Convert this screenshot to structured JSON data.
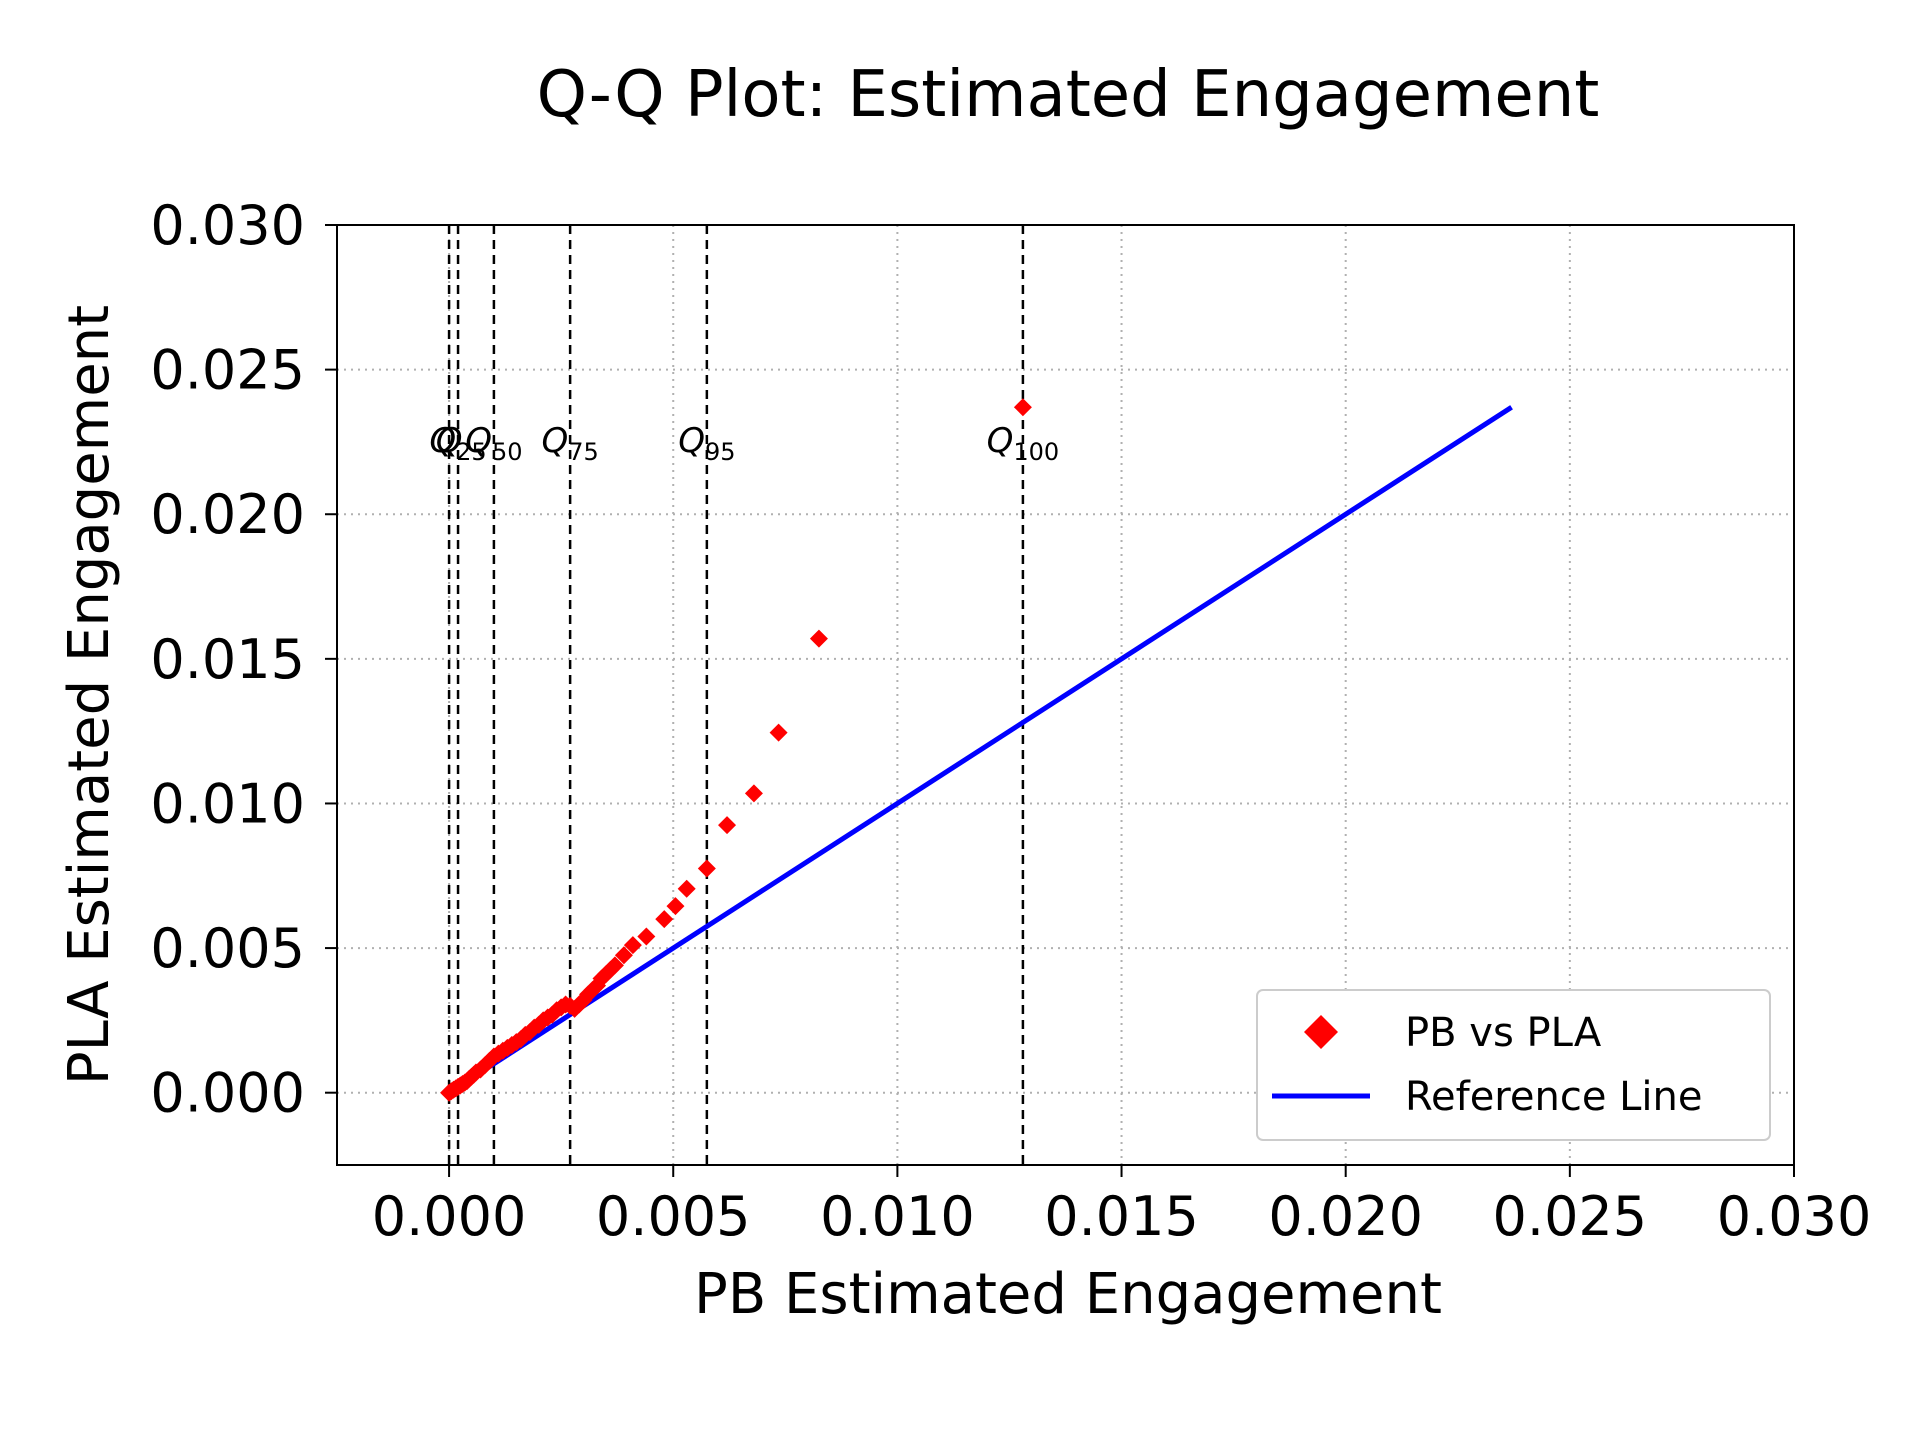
{
  "chart_data": {
    "type": "scatter",
    "title": "Q-Q Plot: Estimated Engagement",
    "xlabel": "PB Estimated Engagement",
    "ylabel": "PLA Estimated Engagement",
    "xlim": [
      -0.0025,
      0.03
    ],
    "ylim": [
      -0.0025,
      0.03
    ],
    "xticks": [
      "0.000",
      "0.005",
      "0.010",
      "0.015",
      "0.020",
      "0.025",
      "0.030"
    ],
    "yticks": [
      "0.000",
      "0.005",
      "0.010",
      "0.015",
      "0.020",
      "0.025",
      "0.030"
    ],
    "grid": true,
    "legend_position": "lower-right",
    "series": [
      {
        "name": "PB vs PLA",
        "kind": "scatter",
        "marker": "diamond",
        "color": "#ff0000",
        "x": [
          0.0,
          5e-05,
          0.0001,
          0.00015,
          0.0002,
          0.00025,
          0.0003,
          0.00035,
          0.0004,
          0.00045,
          0.0005,
          0.00055,
          0.0006,
          0.0007,
          0.0008,
          0.0009,
          0.001,
          0.0011,
          0.0012,
          0.0013,
          0.0014,
          0.0015,
          0.0016,
          0.0017,
          0.0018,
          0.0019,
          0.002,
          0.0021,
          0.0022,
          0.0023,
          0.0024,
          0.0025,
          0.0026,
          0.0027,
          0.0028,
          0.0029,
          0.003,
          0.0031,
          0.0032,
          0.0033,
          0.0034,
          0.0035,
          0.0036,
          0.0037,
          0.0039,
          0.0041,
          0.0044,
          0.0048,
          0.00505,
          0.0053,
          0.00575,
          0.0062,
          0.0068,
          0.00735,
          0.00825,
          0.0128
        ],
        "y": [
          0.0,
          5e-05,
          0.0001,
          0.00015,
          0.0002,
          0.00025,
          0.0003,
          0.00035,
          0.0004,
          0.00048,
          0.00055,
          0.00062,
          0.0007,
          0.0008,
          0.00095,
          0.0011,
          0.00125,
          0.00135,
          0.00145,
          0.00155,
          0.00165,
          0.00175,
          0.00185,
          0.002,
          0.0021,
          0.00225,
          0.00235,
          0.0025,
          0.0026,
          0.0027,
          0.00285,
          0.00295,
          0.00305,
          0.003,
          0.0029,
          0.00305,
          0.0032,
          0.0034,
          0.00355,
          0.0037,
          0.00395,
          0.0041,
          0.00425,
          0.0044,
          0.00475,
          0.0051,
          0.0054,
          0.006,
          0.00645,
          0.00705,
          0.00775,
          0.00925,
          0.01035,
          0.01245,
          0.0157,
          0.0237
        ]
      },
      {
        "name": "Reference Line",
        "kind": "line",
        "color": "#0000ff",
        "x": [
          0.0,
          0.0237
        ],
        "y": [
          0.0,
          0.0237
        ]
      }
    ],
    "quantile_lines": [
      {
        "label": "Q",
        "sub": "",
        "x": 0.0
      },
      {
        "label": "Q",
        "sub": "25",
        "x": 0.0002
      },
      {
        "label": "Q",
        "sub": "50",
        "x": 0.001
      },
      {
        "label": "Q",
        "sub": "75",
        "x": 0.0027
      },
      {
        "label": "Q",
        "sub": "95",
        "x": 0.00575
      },
      {
        "label": "Q",
        "sub": "100",
        "x": 0.0128
      }
    ]
  }
}
